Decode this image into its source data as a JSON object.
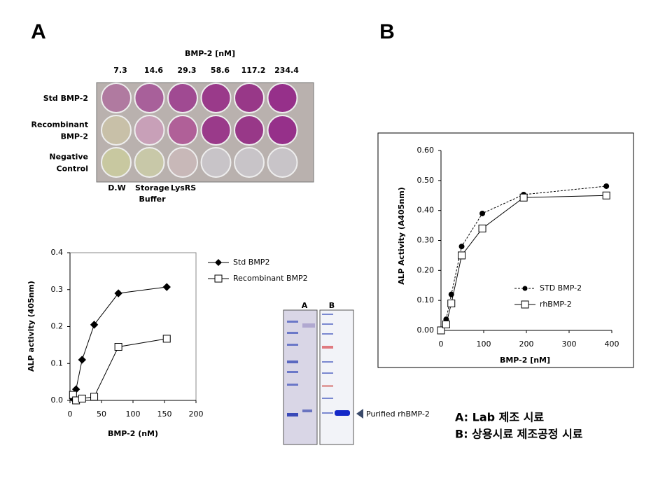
{
  "panel_labels": [
    "A",
    "B"
  ],
  "plate": {
    "title": "BMP-2  [nM]",
    "concentrations": [
      "7.3",
      "14.6",
      "29.3",
      "58.6",
      "117.2",
      "234.4"
    ],
    "rows": [
      [
        "Std BMP-2"
      ],
      [
        "Recombinant",
        "BMP-2"
      ],
      [
        "Negative",
        "Control"
      ]
    ],
    "controls": [
      [
        "D.W"
      ],
      [
        "Storage",
        "Buffer"
      ],
      [
        "LysRS"
      ]
    ]
  },
  "chart_data": [
    {
      "type": "line",
      "xlabel": "BMP-2  (nM)",
      "ylabel": "ALP activity (405nm)",
      "xlim": [
        0,
        200
      ],
      "xticks": [
        0,
        50,
        100,
        150,
        200
      ],
      "ylim": [
        0,
        0.4
      ],
      "yticks": [
        {
          "value": 0,
          "label": "0.0"
        },
        0.1,
        0.2,
        0.3,
        0.4
      ],
      "x": [
        4.8,
        9.6,
        19.2,
        38.4,
        76.8,
        153.6
      ],
      "series": [
        {
          "name": "Std BMP2",
          "color": "#000000",
          "marker": "diamond",
          "dashed": false,
          "values": [
            0.005,
            0.03,
            0.11,
            0.205,
            0.29,
            0.307
          ]
        },
        {
          "name": "Recombinant BMP2",
          "color": "#000000",
          "marker": "square",
          "dashed": false,
          "values": [
            0.015,
            0.0,
            0.005,
            0.01,
            0.145,
            0.167
          ]
        }
      ]
    },
    {
      "type": "line",
      "xlabel": "BMP-2  [nM]",
      "ylabel": "ALP Activity (A405nm)",
      "xlim": [
        0,
        400
      ],
      "xticks": [
        0,
        100,
        200,
        300,
        400
      ],
      "ylim": [
        0,
        0.6
      ],
      "yticks": [
        {
          "value": 0,
          "label": "0.00"
        },
        {
          "value": 0.1,
          "label": "0.10"
        },
        {
          "value": 0.2,
          "label": "0.20"
        },
        {
          "value": 0.3,
          "label": "0.30"
        },
        {
          "value": 0.4,
          "label": "0.40"
        },
        {
          "value": 0.5,
          "label": "0.50"
        },
        {
          "value": 0.6,
          "label": "0.60"
        }
      ],
      "x": [
        0,
        12.1,
        24.2,
        48.4,
        96.8,
        193.6,
        387.2
      ],
      "series": [
        {
          "name": "STD  BMP-2",
          "color": "#000000",
          "marker": "circle",
          "dashed": true,
          "values": [
            null,
            0.037,
            0.12,
            0.28,
            0.39,
            0.453,
            0.481
          ]
        },
        {
          "name": "rhBMP-2",
          "color": "#000000",
          "marker": "square",
          "dashed": false,
          "values": [
            0,
            0.02,
            0.09,
            0.25,
            0.34,
            0.443,
            0.45
          ]
        }
      ]
    }
  ],
  "gel": {
    "lanes": [
      "A",
      "B"
    ],
    "annotation": "Purified  rhBMP-2"
  },
  "notes": [
    "A: Lab 제조 시료",
    "B: 상용시료 제조공정 시료"
  ]
}
